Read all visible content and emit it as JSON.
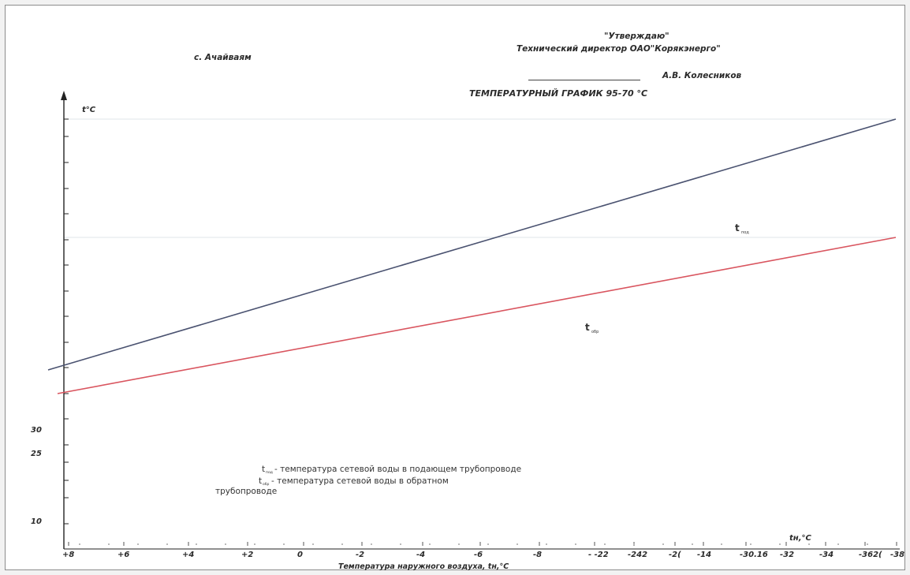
{
  "header": {
    "location": "с. Ачайваям",
    "approve": "\"Утверждаю\"",
    "director": "Технический директор ОАО\"Корякэнерго\"",
    "signer": "А.В. Колесников",
    "chart_title": "ТЕМПЕРАТУРНЫЙ ГРАФИК 95-70 °С"
  },
  "colors": {
    "supply": "#4a5270",
    "return": "#d9555f",
    "axis": "#222222",
    "grid": "#dfe6ea"
  },
  "legend": {
    "supply_sym": "t",
    "supply_sub": "под",
    "supply_text": "- температура сетевой воды  в подающем трубопроводе",
    "return_sym": "t",
    "return_sub": "обр",
    "return_text": "- температура сетевой воды  в  обратном",
    "return_text2": "трубопроводе"
  },
  "chart_data": {
    "type": "line",
    "title": "ТЕМПЕРАТУРНЫЙ ГРАФИК 95-70 °С",
    "xlabel": "Температура наружного воздуха, tн,°С",
    "ylabel": "t°С",
    "x_unit_label": "tн,°С",
    "y_tick_labels": [
      "10",
      "25",
      "30"
    ],
    "x_tick_labels": [
      "+8",
      "+6",
      "+4",
      "+2",
      "0",
      "-2",
      "-4",
      "-6",
      "-8",
      "- -22",
      "-242",
      "-2(",
      "-14",
      "-30.16",
      "-32",
      "-34",
      "-362(",
      "-38"
    ],
    "x_range_data": [
      8,
      -38
    ],
    "series": [
      {
        "name": "t под",
        "x": [
          8,
          -38
        ],
        "y": [
          42,
          95
        ]
      },
      {
        "name": "t обрат",
        "x": [
          8,
          -38
        ],
        "y": [
          37,
          70
        ]
      }
    ]
  }
}
